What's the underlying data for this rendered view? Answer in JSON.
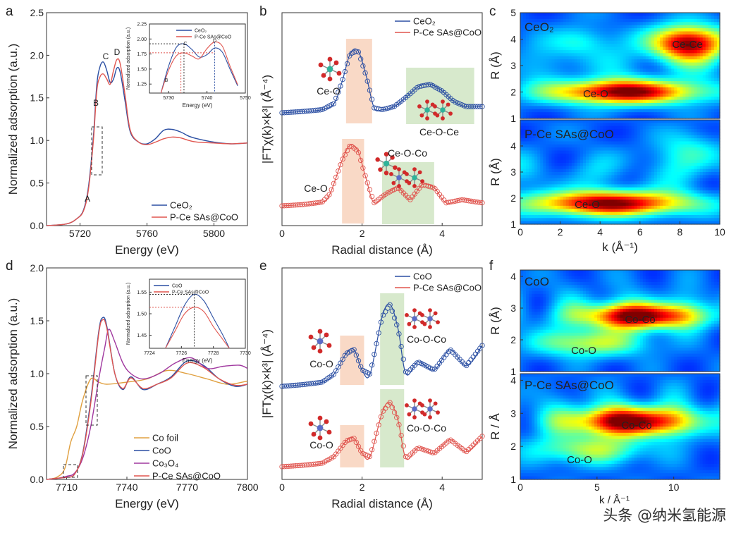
{
  "panel_letters": {
    "a": "a",
    "b": "b",
    "c": "c",
    "d": "d",
    "e": "e",
    "f": "f"
  },
  "watermark": "头条 @纳米氢能源",
  "colors": {
    "ceo2": "#2b4fa3",
    "pce": "#e0554f",
    "cofoil": "#e0a040",
    "coo": "#2b4fa3",
    "co3o4": "#a0389f",
    "pce_co": "#e0554f",
    "shade_peak": "#f9d9c6",
    "shade_green": "#d7e9cc",
    "wt_bg": "#1832d0"
  },
  "chart_data": [
    {
      "id": "a",
      "type": "line",
      "xlabel": "Energy (eV)",
      "ylabel": "Normalized adsorption (a.u.)",
      "xlim": [
        5700,
        5820
      ],
      "ylim": [
        0,
        2.5
      ],
      "xticks": [
        "5720",
        "5760",
        "5800"
      ],
      "xtick_values": [
        5720,
        5760,
        5800
      ],
      "yticks": [
        "0.0",
        "0.5",
        "1.0",
        "1.5",
        "2.0",
        "2.5"
      ],
      "ytick_values": [
        0,
        0.5,
        1.0,
        1.5,
        2.0,
        2.5
      ],
      "legend": [
        "CeO₂",
        "P-Ce SAs@CoO"
      ],
      "point_labels": [
        "A",
        "B",
        "C",
        "D"
      ],
      "series": [
        {
          "name": "CeO₂",
          "x": [
            5700,
            5712,
            5718,
            5722,
            5725,
            5728,
            5730,
            5732,
            5734,
            5736,
            5738,
            5740,
            5742,
            5744,
            5747,
            5750,
            5755,
            5760,
            5765,
            5770,
            5775,
            5780,
            5785,
            5790,
            5800,
            5810,
            5820
          ],
          "y": [
            0.0,
            0.02,
            0.08,
            0.18,
            0.45,
            1.05,
            1.65,
            1.87,
            1.92,
            1.82,
            1.68,
            1.72,
            1.85,
            1.8,
            1.45,
            1.1,
            0.98,
            0.96,
            1.02,
            1.12,
            1.13,
            1.1,
            1.05,
            1.02,
            0.98,
            0.96,
            0.97
          ]
        },
        {
          "name": "P-Ce SAs@CoO",
          "x": [
            5700,
            5712,
            5718,
            5722,
            5725,
            5728,
            5730,
            5732,
            5734,
            5736,
            5738,
            5740,
            5742,
            5744,
            5747,
            5750,
            5755,
            5760,
            5765,
            5770,
            5775,
            5780,
            5785,
            5790,
            5800,
            5810,
            5820
          ],
          "y": [
            0.0,
            0.02,
            0.08,
            0.17,
            0.42,
            1.0,
            1.58,
            1.75,
            1.78,
            1.72,
            1.66,
            1.82,
            1.95,
            1.9,
            1.52,
            1.12,
            0.98,
            0.95,
            0.98,
            1.02,
            1.04,
            1.03,
            1.0,
            0.98,
            0.97,
            0.96,
            0.97
          ]
        }
      ],
      "inset": {
        "xlabel": "Energy (eV)",
        "ylabel": "Normalized adsorption (a.u.)",
        "xlim": [
          5725,
          5750
        ],
        "ylim": [
          1.1,
          2.25
        ],
        "xticks": [
          "5730",
          "5740",
          "5750"
        ],
        "xtick_values": [
          5730,
          5740,
          5750
        ],
        "yticks": [
          "1.25",
          "1.50",
          "1.75",
          "2.00",
          "2.25"
        ],
        "ytick_values": [
          1.25,
          1.5,
          1.75,
          2.0,
          2.25
        ],
        "legend": [
          "CeO₂",
          "P-Ce SAs@CoO"
        ],
        "point_labels": [
          "B",
          "C",
          "D"
        ],
        "series": [
          {
            "name": "CeO₂",
            "x": [
              5728,
              5730,
              5732,
              5734,
              5736,
              5738,
              5740,
              5742,
              5744,
              5746,
              5748
            ],
            "y": [
              1.1,
              1.55,
              1.86,
              1.92,
              1.83,
              1.7,
              1.74,
              1.85,
              1.78,
              1.5,
              1.22
            ]
          },
          {
            "name": "P-Ce SAs@CoO",
            "x": [
              5728,
              5730,
              5732,
              5734,
              5736,
              5738,
              5740,
              5742,
              5744,
              5746,
              5748
            ],
            "y": [
              1.1,
              1.48,
              1.72,
              1.77,
              1.72,
              1.67,
              1.84,
              1.95,
              1.88,
              1.55,
              1.24
            ]
          }
        ]
      }
    },
    {
      "id": "b",
      "type": "line",
      "xlabel": "Radial distance (Å)",
      "ylabel": "|FTχ(k)×k³| (Å⁻⁴)",
      "xlim": [
        0,
        5
      ],
      "xticks": [
        "0",
        "2",
        "4"
      ],
      "xtick_values": [
        0,
        2,
        4
      ],
      "legend": [
        "CeO₂",
        "P-Ce SAs@CoO"
      ],
      "annotations": [
        "Ce-O",
        "Ce-O-Ce",
        "Ce-O",
        "Ce-O-Co"
      ],
      "series": [
        {
          "name": "CeO₂",
          "x": [
            0,
            0.5,
            1,
            1.3,
            1.5,
            1.7,
            1.9,
            2.1,
            2.3,
            2.5,
            2.8,
            3.1,
            3.4,
            3.7,
            4.0,
            4.3,
            4.6,
            5.0
          ],
          "y": [
            0.0,
            0.02,
            0.05,
            0.15,
            0.5,
            0.95,
            1.0,
            0.6,
            0.08,
            0.05,
            0.1,
            0.25,
            0.42,
            0.46,
            0.35,
            0.18,
            0.1,
            0.1
          ]
        },
        {
          "name": "P-Ce SAs@CoO",
          "x": [
            0,
            0.5,
            1,
            1.2,
            1.5,
            1.7,
            1.9,
            2.1,
            2.3,
            2.6,
            2.9,
            3.2,
            3.5,
            3.8,
            4.1,
            4.5,
            5.0
          ],
          "y": [
            0.0,
            0.02,
            0.06,
            0.2,
            0.75,
            1.0,
            0.9,
            0.45,
            0.05,
            0.2,
            0.3,
            0.1,
            0.35,
            0.3,
            0.05,
            0.1,
            0.05
          ]
        }
      ]
    },
    {
      "id": "c",
      "type": "heatmap",
      "xlabel": "k (Å⁻¹)",
      "ylabel": "R (Å)",
      "xlim": [
        0,
        10
      ],
      "ylim": [
        1,
        5
      ],
      "xticks": [
        "0",
        "2",
        "4",
        "6",
        "8",
        "10"
      ],
      "xtick_values": [
        0,
        2,
        4,
        6,
        8,
        10
      ],
      "yticks": [
        "1",
        "2",
        "3",
        "4",
        "5"
      ],
      "ytick_values": [
        1,
        2,
        3,
        4,
        5
      ],
      "subplots": [
        {
          "title": "CeO₂",
          "labels": [
            "Ce-Ce",
            "Ce-O"
          ],
          "peaks": [
            {
              "k": 8.4,
              "r": 3.85,
              "sk": 1.3,
              "sr": 0.45,
              "a": 1.0
            },
            {
              "k": 5.2,
              "r": 2.0,
              "sk": 2.6,
              "sr": 0.32,
              "a": 1.0
            },
            {
              "k": 3.0,
              "r": 3.9,
              "sk": 1.0,
              "sr": 0.4,
              "a": 0.25
            }
          ]
        },
        {
          "title": "P-Ce SAs@CoO",
          "labels": [
            "Ce-O"
          ],
          "peaks": [
            {
              "k": 4.5,
              "r": 1.8,
              "sk": 2.8,
              "sr": 0.33,
              "a": 1.0
            },
            {
              "k": 8.5,
              "r": 3.8,
              "sk": 1.2,
              "sr": 0.5,
              "a": 0.22
            }
          ]
        }
      ]
    },
    {
      "id": "d",
      "type": "line",
      "xlabel": "Energy (eV)",
      "ylabel": "Normalized adsorption (a.u.)",
      "xlim": [
        7700,
        7800
      ],
      "ylim": [
        0,
        2.0
      ],
      "xticks": [
        "7710",
        "7740",
        "7770",
        "7800"
      ],
      "xtick_values": [
        7710,
        7740,
        7770,
        7800
      ],
      "yticks": [
        "0.0",
        "0.5",
        "1.0",
        "1.5",
        "2.0"
      ],
      "ytick_values": [
        0,
        0.5,
        1.0,
        1.5,
        2.0
      ],
      "legend": [
        "Co foil",
        "CoO",
        "Co₃O₄",
        "P-Ce SAs@CoO"
      ],
      "series": [
        {
          "name": "Co foil",
          "x": [
            7700,
            7705,
            7709,
            7712,
            7715,
            7718,
            7722,
            7726,
            7730,
            7740,
            7750,
            7760,
            7770,
            7780,
            7790,
            7800
          ],
          "y": [
            0.0,
            0.02,
            0.1,
            0.35,
            0.5,
            0.75,
            0.95,
            0.92,
            0.9,
            0.92,
            0.95,
            1.03,
            1.0,
            0.95,
            0.9,
            0.93
          ]
        },
        {
          "name": "CoO",
          "x": [
            7700,
            7705,
            7710,
            7714,
            7718,
            7722,
            7726,
            7728,
            7730,
            7734,
            7738,
            7742,
            7748,
            7755,
            7762,
            7770,
            7778,
            7786,
            7794,
            7800
          ],
          "y": [
            0.0,
            0.01,
            0.02,
            0.05,
            0.25,
            0.75,
            1.4,
            1.53,
            1.45,
            1.0,
            0.85,
            0.97,
            0.85,
            0.9,
            0.97,
            1.12,
            1.08,
            0.95,
            0.88,
            0.9
          ]
        },
        {
          "name": "Co₃O₄",
          "x": [
            7700,
            7705,
            7710,
            7714,
            7718,
            7722,
            7726,
            7729,
            7731,
            7734,
            7738,
            7742,
            7748,
            7756,
            7764,
            7772,
            7780,
            7788,
            7796,
            7800
          ],
          "y": [
            0.0,
            0.01,
            0.03,
            0.06,
            0.2,
            0.5,
            0.95,
            1.25,
            1.42,
            1.3,
            1.1,
            1.0,
            0.95,
            1.0,
            1.1,
            1.15,
            1.05,
            1.07,
            1.08,
            1.05
          ]
        },
        {
          "name": "P-Ce SAs@CoO",
          "x": [
            7700,
            7705,
            7710,
            7714,
            7718,
            7722,
            7726,
            7728,
            7730,
            7734,
            7738,
            7742,
            7748,
            7755,
            7762,
            7770,
            7778,
            7786,
            7794,
            7800
          ],
          "y": [
            0.0,
            0.01,
            0.02,
            0.05,
            0.24,
            0.72,
            1.38,
            1.51,
            1.43,
            1.0,
            0.86,
            0.96,
            0.86,
            0.9,
            0.96,
            1.1,
            1.06,
            0.95,
            0.89,
            0.9
          ]
        }
      ],
      "inset": {
        "xlabel": "Energy (eV)",
        "ylabel": "Normalized adsorption (a.u.)",
        "xlim": [
          7724,
          7730
        ],
        "ylim": [
          1.42,
          1.58
        ],
        "xticks": [
          "7724",
          "7726",
          "7728",
          "7730"
        ],
        "xtick_values": [
          7724,
          7726,
          7728,
          7730
        ],
        "yticks": [
          "1.45",
          "1.50",
          "1.55"
        ],
        "ytick_values": [
          1.45,
          1.5,
          1.55
        ],
        "legend": [
          "CoO",
          "P-Ce SAs@CoO"
        ],
        "series": [
          {
            "name": "CoO",
            "x": [
              7725.0,
              7725.6,
              7726.2,
              7726.8,
              7727.4,
              7728.0,
              7728.6,
              7729.0
            ],
            "y": [
              1.42,
              1.47,
              1.52,
              1.545,
              1.53,
              1.49,
              1.45,
              1.42
            ]
          },
          {
            "name": "P-Ce SAs@CoO",
            "x": [
              7725.0,
              7725.6,
              7726.2,
              7726.8,
              7727.4,
              7728.0,
              7728.6,
              7729.0
            ],
            "y": [
              1.42,
              1.46,
              1.5,
              1.515,
              1.505,
              1.47,
              1.44,
              1.42
            ]
          }
        ]
      }
    },
    {
      "id": "e",
      "type": "line",
      "xlabel": "Radial distance (Å)",
      "ylabel": "|FTχ(k)×k³| (Å⁻⁴)",
      "xlim": [
        0,
        5
      ],
      "xticks": [
        "0",
        "2",
        "4"
      ],
      "xtick_values": [
        0,
        2,
        4
      ],
      "legend": [
        "CoO",
        "P-Ce SAs@CoO"
      ],
      "annotations": [
        "Co-O",
        "Co-O-Co",
        "Co-O",
        "Co-O-Co"
      ],
      "series": [
        {
          "name": "CoO",
          "x": [
            0,
            0.5,
            1.0,
            1.3,
            1.6,
            1.8,
            2.0,
            2.2,
            2.5,
            2.7,
            2.9,
            3.1,
            3.4,
            3.8,
            4.2,
            4.6,
            5.0
          ],
          "y": [
            0.0,
            0.02,
            0.05,
            0.15,
            0.4,
            0.45,
            0.2,
            0.15,
            0.85,
            1.0,
            0.7,
            0.15,
            0.3,
            0.2,
            0.45,
            0.25,
            0.5
          ]
        },
        {
          "name": "P-Ce SAs@CoO",
          "x": [
            0,
            0.5,
            1.0,
            1.3,
            1.6,
            1.8,
            2.0,
            2.2,
            2.5,
            2.7,
            2.9,
            3.1,
            3.4,
            3.8,
            4.2,
            4.6,
            5.0
          ],
          "y": [
            0.0,
            0.02,
            0.05,
            0.15,
            0.38,
            0.42,
            0.2,
            0.15,
            0.8,
            0.95,
            0.68,
            0.12,
            0.28,
            0.2,
            0.4,
            0.22,
            0.45
          ]
        }
      ]
    },
    {
      "id": "f",
      "type": "heatmap",
      "xlabel": "k / Å⁻¹",
      "ylabel_top": "R (Å)",
      "ylabel_bottom": "R / Å",
      "xlim": [
        0,
        13
      ],
      "ylim": [
        1,
        4.2
      ],
      "xticks": [
        "0",
        "5",
        "10"
      ],
      "xtick_values": [
        0,
        5,
        10
      ],
      "yticks": [
        "1",
        "2",
        "3",
        "4"
      ],
      "ytick_values": [
        1,
        2,
        3,
        4
      ],
      "subplots": [
        {
          "title": "CoO",
          "labels": [
            "Co-Co",
            "Co-O"
          ],
          "peaks": [
            {
              "k": 7.8,
              "r": 2.75,
              "sk": 2.6,
              "sr": 0.28,
              "a": 1.0
            },
            {
              "k": 4.5,
              "r": 1.9,
              "sk": 2.5,
              "sr": 0.3,
              "a": 0.45
            }
          ]
        },
        {
          "title": "P-Ce SAs@CoO",
          "labels": [
            "Co-Co",
            "Co-O"
          ],
          "peaks": [
            {
              "k": 7.2,
              "r": 2.75,
              "sk": 2.8,
              "sr": 0.3,
              "a": 1.0
            },
            {
              "k": 4.5,
              "r": 1.9,
              "sk": 2.6,
              "sr": 0.3,
              "a": 0.4
            }
          ]
        }
      ]
    }
  ]
}
